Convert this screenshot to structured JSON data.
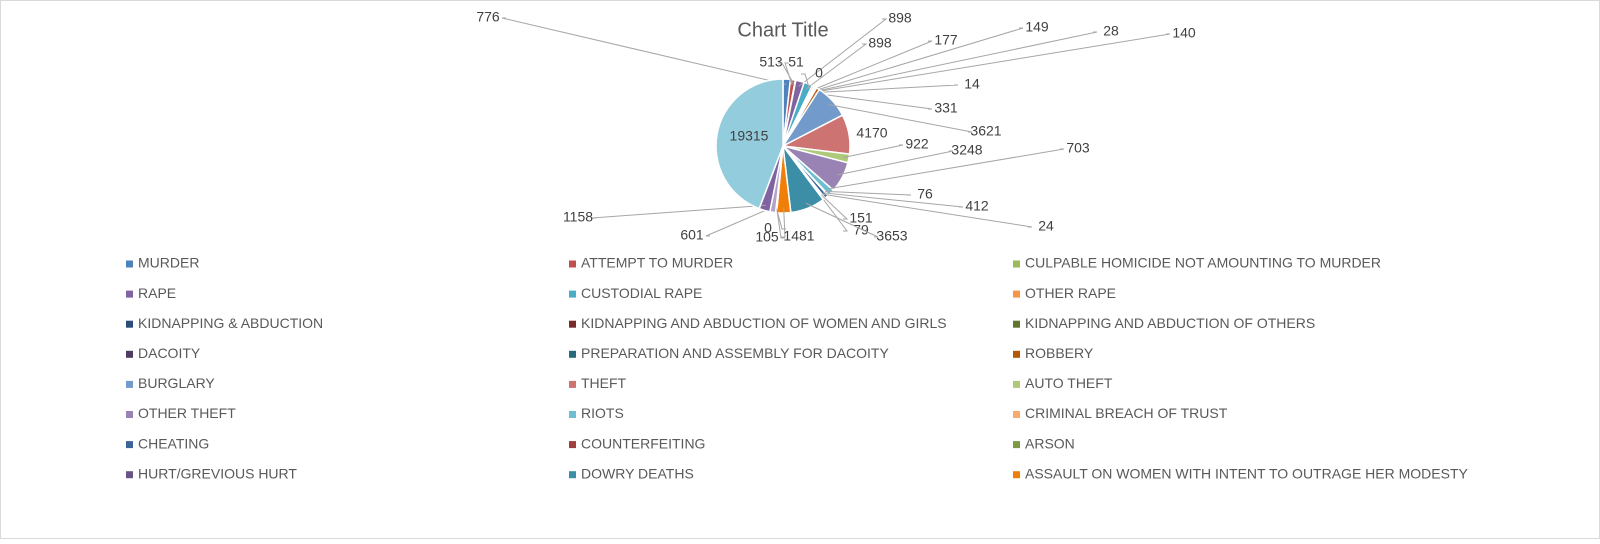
{
  "chart_data": {
    "type": "pie",
    "title": "Chart Title",
    "categories": [
      "MURDER",
      "ATTEMPT TO MURDER",
      "CULPABLE HOMICIDE NOT AMOUNTING TO MURDER",
      "RAPE",
      "CUSTODIAL RAPE",
      "OTHER RAPE",
      "KIDNAPPING & ABDUCTION",
      "KIDNAPPING AND ABDUCTION OF WOMEN AND GIRLS",
      "KIDNAPPING AND ABDUCTION OF OTHERS",
      "DACOITY",
      "PREPARATION AND ASSEMBLY FOR DACOITY",
      "ROBBERY",
      "BURGLARY",
      "THEFT",
      "AUTO THEFT",
      "OTHER THEFT",
      "RIOTS",
      "CRIMINAL BREACH OF TRUST",
      "CHEATING",
      "COUNTERFEITING",
      "ARSON",
      "HURT/GREVIOUS HURT",
      "DOWRY DEATHS",
      "ASSAULT ON WOMEN WITH INTENT TO OUTRAGE HER MODESTY",
      null,
      null,
      null,
      null,
      null
    ],
    "values": [
      776,
      513,
      51,
      898,
      898,
      0,
      177,
      149,
      28,
      140,
      14,
      331,
      3621,
      4170,
      922,
      3248,
      703,
      76,
      412,
      24,
      151,
      79,
      3653,
      1481,
      105,
      0,
      601,
      1158,
      19315
    ],
    "colors": [
      "#4f81bd",
      "#c0504d",
      "#9bbb59",
      "#8064a2",
      "#4bacc6",
      "#f79646",
      "#2c4d75",
      "#772c2a",
      "#5f7530",
      "#4d3b62",
      "#276a7c",
      "#b65708",
      "#729aca",
      "#cd7371",
      "#afc97a",
      "#9983b5",
      "#6fbdd1",
      "#f9ab6b",
      "#3c6497",
      "#a03e3b",
      "#7d9a43",
      "#6a5389",
      "#3b8ea5",
      "#f07f09",
      "#4f81bd",
      "#c0504d",
      "#b3a2c7",
      "#8064a2",
      "#93cddd"
    ],
    "legend": "bottom"
  }
}
